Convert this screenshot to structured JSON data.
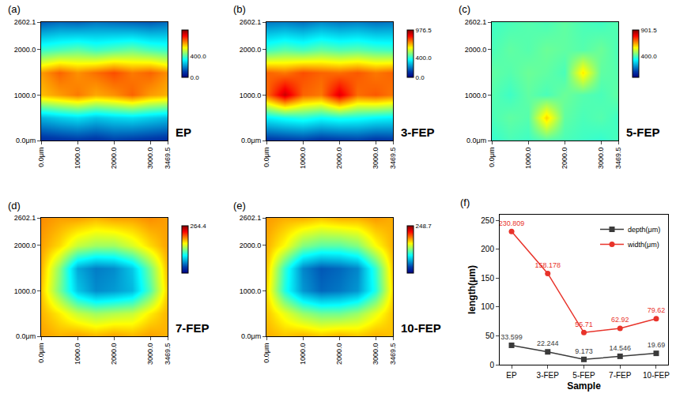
{
  "chart_data": [
    {
      "type": "heatmap",
      "panel_label": "(a)",
      "annotation": "EP",
      "color": "Jet",
      "x": [
        0,
        500,
        1000,
        1500,
        2000,
        2500,
        3000,
        3469.5
      ],
      "y": [
        0,
        500,
        1000,
        1500,
        2000,
        2602.1
      ],
      "z": [
        [
          80,
          90,
          100,
          90,
          110,
          100,
          90,
          80
        ],
        [
          250,
          280,
          300,
          270,
          290,
          300,
          280,
          260
        ],
        [
          620,
          650,
          680,
          640,
          660,
          700,
          650,
          630
        ],
        [
          650,
          700,
          660,
          690,
          720,
          680,
          700,
          660
        ],
        [
          380,
          400,
          420,
          390,
          410,
          430,
          400,
          380
        ],
        [
          150,
          170,
          160,
          180,
          170,
          160,
          150,
          170
        ]
      ],
      "xlim": [
        0,
        3469.5
      ],
      "xticks": [
        {
          "value": 0,
          "label": "0.0μm"
        },
        {
          "value": 1000,
          "label": "1000.0"
        },
        {
          "value": 2000,
          "label": "2000.0"
        },
        {
          "value": 3000,
          "label": "3000.0"
        },
        {
          "value": 3469.5,
          "label": "3469.5"
        }
      ],
      "ylim": [
        0,
        2602.1
      ],
      "yticks": [
        {
          "value": 0,
          "label": "0.0μm"
        },
        {
          "value": 1000,
          "label": "1000.0"
        },
        {
          "value": 2000,
          "label": "2000.0"
        },
        {
          "value": 2602.1,
          "label": "2602.1"
        }
      ],
      "zlim": [
        0,
        900
      ],
      "zticks": [
        {
          "value": 0,
          "label": "0.0"
        },
        {
          "value": 400,
          "label": "400.0"
        }
      ]
    },
    {
      "type": "heatmap",
      "panel_label": "(b)",
      "annotation": "3-FEP",
      "color": "Jet",
      "x": [
        0,
        500,
        1000,
        1500,
        2000,
        2500,
        3000,
        3469.5
      ],
      "y": [
        0,
        500,
        1000,
        1500,
        2000,
        2602.1
      ],
      "z": [
        [
          100,
          110,
          120,
          100,
          110,
          120,
          100,
          110
        ],
        [
          350,
          380,
          400,
          370,
          390,
          380,
          360,
          350
        ],
        [
          750,
          900,
          760,
          740,
          880,
          750,
          770,
          740
        ],
        [
          760,
          740,
          780,
          760,
          750,
          770,
          740,
          760
        ],
        [
          420,
          450,
          430,
          460,
          440,
          450,
          430,
          420
        ],
        [
          200,
          210,
          190,
          220,
          200,
          210,
          190,
          200
        ]
      ],
      "xlim": [
        0,
        3469.5
      ],
      "xticks": [
        {
          "value": 0,
          "label": "0.0μm"
        },
        {
          "value": 1000,
          "label": "1000.0"
        },
        {
          "value": 2000,
          "label": "2000.0"
        },
        {
          "value": 3000,
          "label": "3000.0"
        },
        {
          "value": 3469.5,
          "label": "3469.5"
        }
      ],
      "ylim": [
        0,
        2602.1
      ],
      "yticks": [
        {
          "value": 0,
          "label": "0.0μm"
        },
        {
          "value": 1000,
          "label": "1000.0"
        },
        {
          "value": 2000,
          "label": "2000.0"
        },
        {
          "value": 2602.1,
          "label": "2602.1"
        }
      ],
      "zlim": [
        0,
        976.5
      ],
      "zticks": [
        {
          "value": 0,
          "label": "0.0"
        },
        {
          "value": 400,
          "label": "400.0"
        },
        {
          "value": 976.5,
          "label": "976.5"
        }
      ]
    },
    {
      "type": "heatmap",
      "panel_label": "(c)",
      "annotation": "5-FEP",
      "color": "Jet",
      "x": [
        0,
        500,
        1000,
        1500,
        2000,
        2500,
        3000,
        3469.5
      ],
      "y": [
        0,
        500,
        1000,
        1500,
        2000,
        2602.1
      ],
      "z": [
        [
          380,
          400,
          390,
          410,
          400,
          390,
          380,
          400
        ],
        [
          400,
          420,
          410,
          600,
          420,
          400,
          410,
          390
        ],
        [
          410,
          390,
          420,
          400,
          430,
          410,
          400,
          420
        ],
        [
          420,
          410,
          430,
          420,
          400,
          580,
          420,
          410
        ],
        [
          400,
          420,
          410,
          430,
          420,
          410,
          430,
          400
        ],
        [
          390,
          400,
          410,
          400,
          420,
          400,
          390,
          410
        ]
      ],
      "xlim": [
        0,
        3469.5
      ],
      "xticks": [
        {
          "value": 0,
          "label": "0.0μm"
        },
        {
          "value": 1000,
          "label": "1000.0"
        },
        {
          "value": 2000,
          "label": "2000.0"
        },
        {
          "value": 3000,
          "label": "3000.0"
        },
        {
          "value": 3469.5,
          "label": "3469.5"
        }
      ],
      "ylim": [
        0,
        2602.1
      ],
      "yticks": [
        {
          "value": 0,
          "label": "0.0μm"
        },
        {
          "value": 1000,
          "label": "1000.0"
        },
        {
          "value": 2000,
          "label": "2000.0"
        },
        {
          "value": 2602.1,
          "label": "2602.1"
        }
      ],
      "zlim": [
        0,
        901.5
      ],
      "zticks": [
        {
          "value": 400,
          "label": "400.0"
        },
        {
          "value": 901.5,
          "label": "901.5"
        }
      ]
    },
    {
      "type": "heatmap",
      "panel_label": "(d)",
      "annotation": "7-FEP",
      "color": "Jet",
      "x": [
        0,
        500,
        1000,
        1500,
        2000,
        2500,
        3000,
        3469.5
      ],
      "y": [
        0,
        500,
        1000,
        1500,
        2000,
        2602.1
      ],
      "z": [
        [
          190,
          185,
          190,
          185,
          190,
          185,
          190,
          185
        ],
        [
          185,
          170,
          150,
          140,
          145,
          150,
          170,
          185
        ],
        [
          180,
          130,
          80,
          60,
          65,
          75,
          120,
          180
        ],
        [
          185,
          135,
          70,
          55,
          60,
          80,
          130,
          185
        ],
        [
          190,
          175,
          150,
          140,
          140,
          155,
          175,
          190
        ],
        [
          195,
          190,
          190,
          185,
          190,
          190,
          195,
          190
        ]
      ],
      "xlim": [
        0,
        3469.5
      ],
      "xticks": [
        {
          "value": 0,
          "label": "0.0μm"
        },
        {
          "value": 1000,
          "label": "1000.0"
        },
        {
          "value": 2000,
          "label": "2000.0"
        },
        {
          "value": 3000,
          "label": "3000.0"
        },
        {
          "value": 3469.5,
          "label": "3469.5"
        }
      ],
      "ylim": [
        0,
        2602.1
      ],
      "yticks": [
        {
          "value": 0,
          "label": "0.0μm"
        },
        {
          "value": 1000,
          "label": "1000.0"
        },
        {
          "value": 2000,
          "label": "2000.0"
        },
        {
          "value": 2602.1,
          "label": "2602.1"
        }
      ],
      "zlim": [
        0,
        264.4
      ],
      "zticks": [
        {
          "value": 264.4,
          "label": "264.4"
        }
      ]
    },
    {
      "type": "heatmap",
      "panel_label": "(e)",
      "annotation": "10-FEP",
      "color": "Jet",
      "x": [
        0,
        500,
        1000,
        1500,
        2000,
        2500,
        3000,
        3469.5
      ],
      "y": [
        0,
        500,
        1000,
        1500,
        2000,
        2602.1
      ],
      "z": [
        [
          175,
          170,
          175,
          170,
          175,
          170,
          175,
          170
        ],
        [
          170,
          150,
          130,
          120,
          120,
          130,
          150,
          170
        ],
        [
          165,
          100,
          60,
          45,
          50,
          60,
          100,
          165
        ],
        [
          170,
          105,
          55,
          40,
          45,
          55,
          105,
          170
        ],
        [
          175,
          155,
          125,
          115,
          115,
          125,
          155,
          175
        ],
        [
          180,
          175,
          175,
          170,
          175,
          175,
          180,
          175
        ]
      ],
      "xlim": [
        0,
        3469.5
      ],
      "xticks": [
        {
          "value": 0,
          "label": "0.0μm"
        },
        {
          "value": 1000,
          "label": "1000.0"
        },
        {
          "value": 2000,
          "label": "2000.0"
        },
        {
          "value": 3000,
          "label": "3000.0"
        },
        {
          "value": 3469.5,
          "label": "3469.5"
        }
      ],
      "ylim": [
        0,
        2602.1
      ],
      "yticks": [
        {
          "value": 0,
          "label": "0.0μm"
        },
        {
          "value": 1000,
          "label": "1000.0"
        },
        {
          "value": 2000,
          "label": "2000.0"
        },
        {
          "value": 2602.1,
          "label": "2602.1"
        }
      ],
      "zlim": [
        0,
        248.7
      ],
      "zticks": [
        {
          "value": 248.7,
          "label": "248.7"
        }
      ]
    },
    {
      "type": "line",
      "panel_label": "(f)",
      "categories": [
        "EP",
        "3-FEP",
        "5-FEP",
        "7-FEP",
        "10-FEP"
      ],
      "series": [
        {
          "name": "depth(μm)",
          "color": "#3a3a3a",
          "marker": "square",
          "values": [
            33.599,
            22.244,
            9.173,
            14.546,
            19.69
          ]
        },
        {
          "name": "width(μm)",
          "color": "#e8332a",
          "marker": "circle",
          "values": [
            230.809,
            158.178,
            55.71,
            62.92,
            79.62
          ]
        }
      ],
      "x_label": "Sample",
      "y_label": "length(μm)",
      "ylim": [
        0,
        260
      ],
      "yticks": [
        0,
        50,
        100,
        150,
        200,
        250
      ],
      "legend": "upper right",
      "data_labels": true,
      "grid": false
    }
  ]
}
